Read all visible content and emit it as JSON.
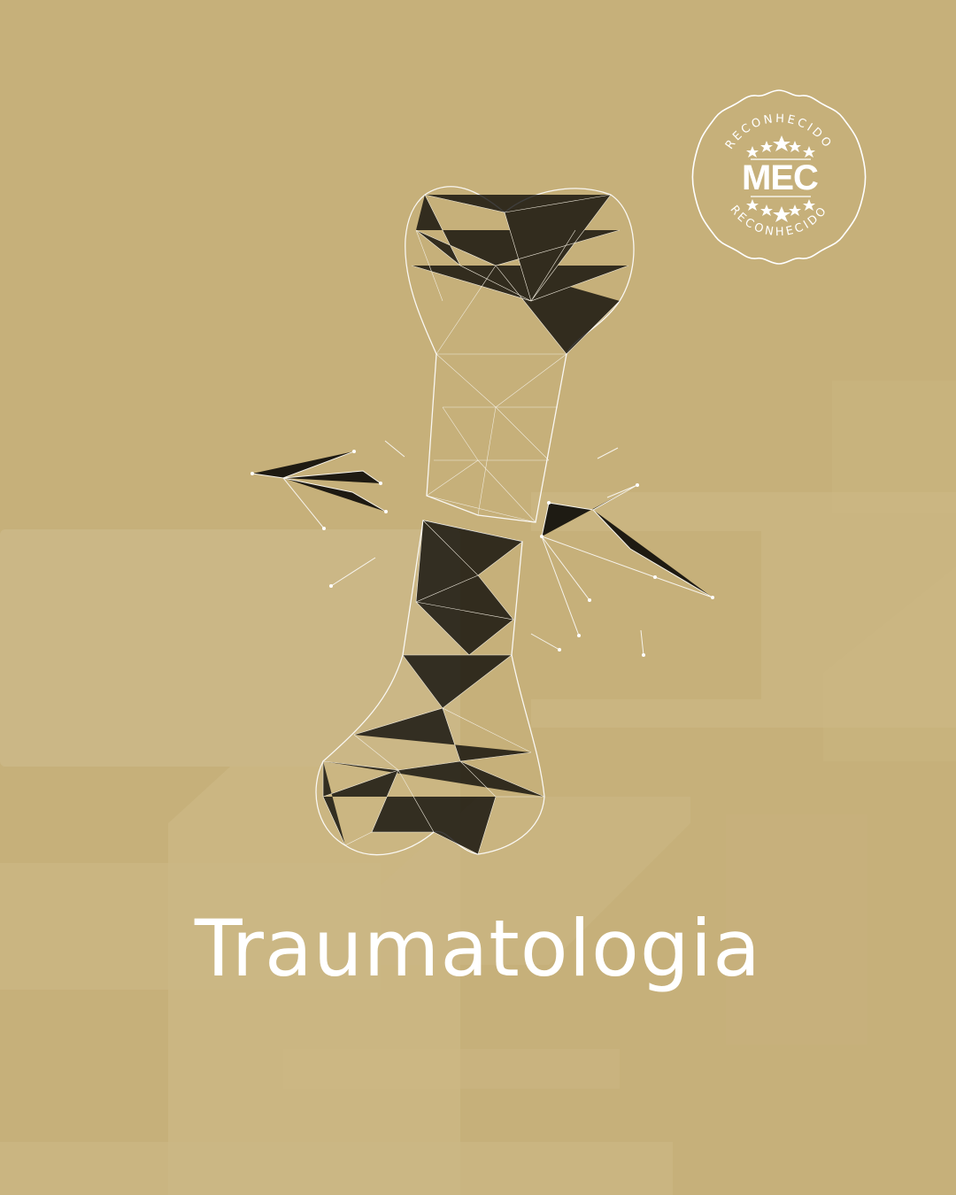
{
  "title": "Traumatologia",
  "seal": {
    "top_text": "RECONHECIDO",
    "bottom_text": "RECONHECIDO",
    "main_text": "MEC"
  },
  "colors": {
    "background": "#c6b07a",
    "shape_light": "#cdb988",
    "line_white": "#ffffff"
  },
  "icons": {
    "bone": "fractured-bone-wireframe-icon",
    "seal": "mec-recognition-seal-icon"
  }
}
